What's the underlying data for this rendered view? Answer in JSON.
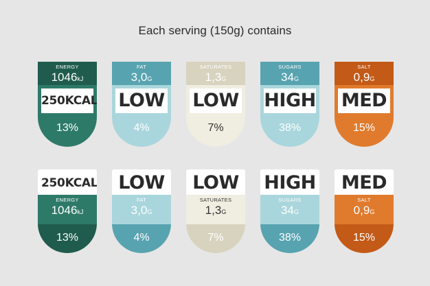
{
  "title": "Each serving (150g) contains",
  "labels": [
    {
      "name": "ENERGY",
      "amount": "1046",
      "unit": "kJ",
      "level": "250KCAL",
      "percent": "13%"
    },
    {
      "name": "FAT",
      "amount": "3,0",
      "unit": "G",
      "level": "LOW",
      "percent": "4%"
    },
    {
      "name": "SATURATES",
      "amount": "1,3",
      "unit": "G",
      "level": "LOW",
      "percent": "7%"
    },
    {
      "name": "SUGARS",
      "amount": "34",
      "unit": "G",
      "level": "HIGH",
      "percent": "38%"
    },
    {
      "name": "SALT",
      "amount": "0,9",
      "unit": "G",
      "level": "MED",
      "percent": "15%"
    }
  ],
  "colors": {
    "energy": {
      "dark": "#1f5c4d",
      "mid": "#2e7a69",
      "light": "#2e7a69",
      "text": "#ffffff"
    },
    "fat": {
      "dark": "#58a3b0",
      "mid": "#a9d6dc",
      "light": "#58a3b0",
      "text": "#ffffff"
    },
    "saturates": {
      "dark": "#d8d3bf",
      "mid": "#f0eee1",
      "light": "#d8d3bf",
      "text": "#333333"
    },
    "sugars": {
      "dark": "#58a3b0",
      "mid": "#a9d6dc",
      "light": "#58a3b0",
      "text": "#ffffff"
    },
    "salt": {
      "dark": "#c35a17",
      "mid": "#e07b2d",
      "light": "#e07b2d",
      "text": "#ffffff"
    }
  }
}
